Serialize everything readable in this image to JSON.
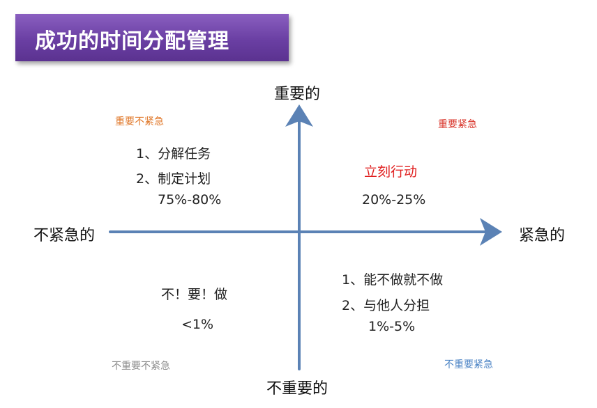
{
  "title": "成功的时间分配管理",
  "axes": {
    "top": "重要的",
    "bottom": "不重要的",
    "left": "不紧急的",
    "right": "紧急的"
  },
  "quadrants": {
    "important_not_urgent": {
      "label": "重要不紧急",
      "label_color": "#e0782a",
      "lines": [
        "1、分解任务",
        "2、制定计划"
      ],
      "percent": "75%-80%"
    },
    "important_urgent": {
      "label": "重要紧急",
      "label_color": "#d9352b",
      "action": "立刻行动",
      "action_color": "#e02020",
      "percent": "20%-25%"
    },
    "not_important_not_urgent": {
      "label": "不重要不紧急",
      "label_color": "#8c8c8c",
      "action": "不！要！做",
      "percent": "<1%"
    },
    "not_important_urgent": {
      "label": "不重要紧急",
      "label_color": "#4f86c6",
      "lines": [
        "1、能不做就不做",
        "2、与他人分担"
      ],
      "percent": "1%-5%"
    }
  },
  "colors": {
    "axis": "#5b82b5",
    "banner": "#6a3fa3"
  }
}
